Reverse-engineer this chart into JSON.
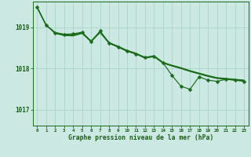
{
  "background_color": "#cce8e2",
  "grid_color": "#aad4c8",
  "line_color": "#1a6b1a",
  "text_color": "#1a5c1a",
  "xlabel": "Graphe pression niveau de la mer (hPa)",
  "ylim": [
    1016.62,
    1019.62
  ],
  "xlim": [
    -0.5,
    23.5
  ],
  "yticks": [
    1017,
    1018,
    1019
  ],
  "linewidth": 0.85,
  "markersize": 2.5,
  "series1": [
    1019.48,
    1019.05,
    1018.87,
    1018.83,
    1018.84,
    1018.88,
    1018.65,
    1018.91,
    1018.62,
    1018.52,
    1018.42,
    1018.35,
    1018.27,
    1018.29,
    1018.14,
    1017.83,
    1017.57,
    1017.5,
    1017.8,
    1017.72,
    1017.69,
    1017.74,
    1017.72,
    1017.69
  ],
  "series2": [
    1019.48,
    1019.05,
    1018.87,
    1018.82,
    1018.81,
    1018.87,
    1018.67,
    1018.89,
    1018.63,
    1018.54,
    1018.44,
    1018.37,
    1018.27,
    1018.31,
    1018.15,
    1018.08,
    1018.02,
    1017.95,
    1017.89,
    1017.83,
    1017.78,
    1017.76,
    1017.74,
    1017.72
  ],
  "series3": [
    1019.48,
    1019.05,
    1018.86,
    1018.81,
    1018.8,
    1018.86,
    1018.66,
    1018.88,
    1018.62,
    1018.53,
    1018.43,
    1018.36,
    1018.26,
    1018.3,
    1018.14,
    1018.07,
    1018.01,
    1017.94,
    1017.88,
    1017.82,
    1017.77,
    1017.75,
    1017.73,
    1017.71
  ],
  "series4": [
    1019.48,
    1019.05,
    1018.85,
    1018.8,
    1018.79,
    1018.85,
    1018.65,
    1018.87,
    1018.61,
    1018.52,
    1018.42,
    1018.35,
    1018.25,
    1018.29,
    1018.13,
    1018.06,
    1018.0,
    1017.93,
    1017.87,
    1017.81,
    1017.76,
    1017.74,
    1017.72,
    1017.7
  ]
}
